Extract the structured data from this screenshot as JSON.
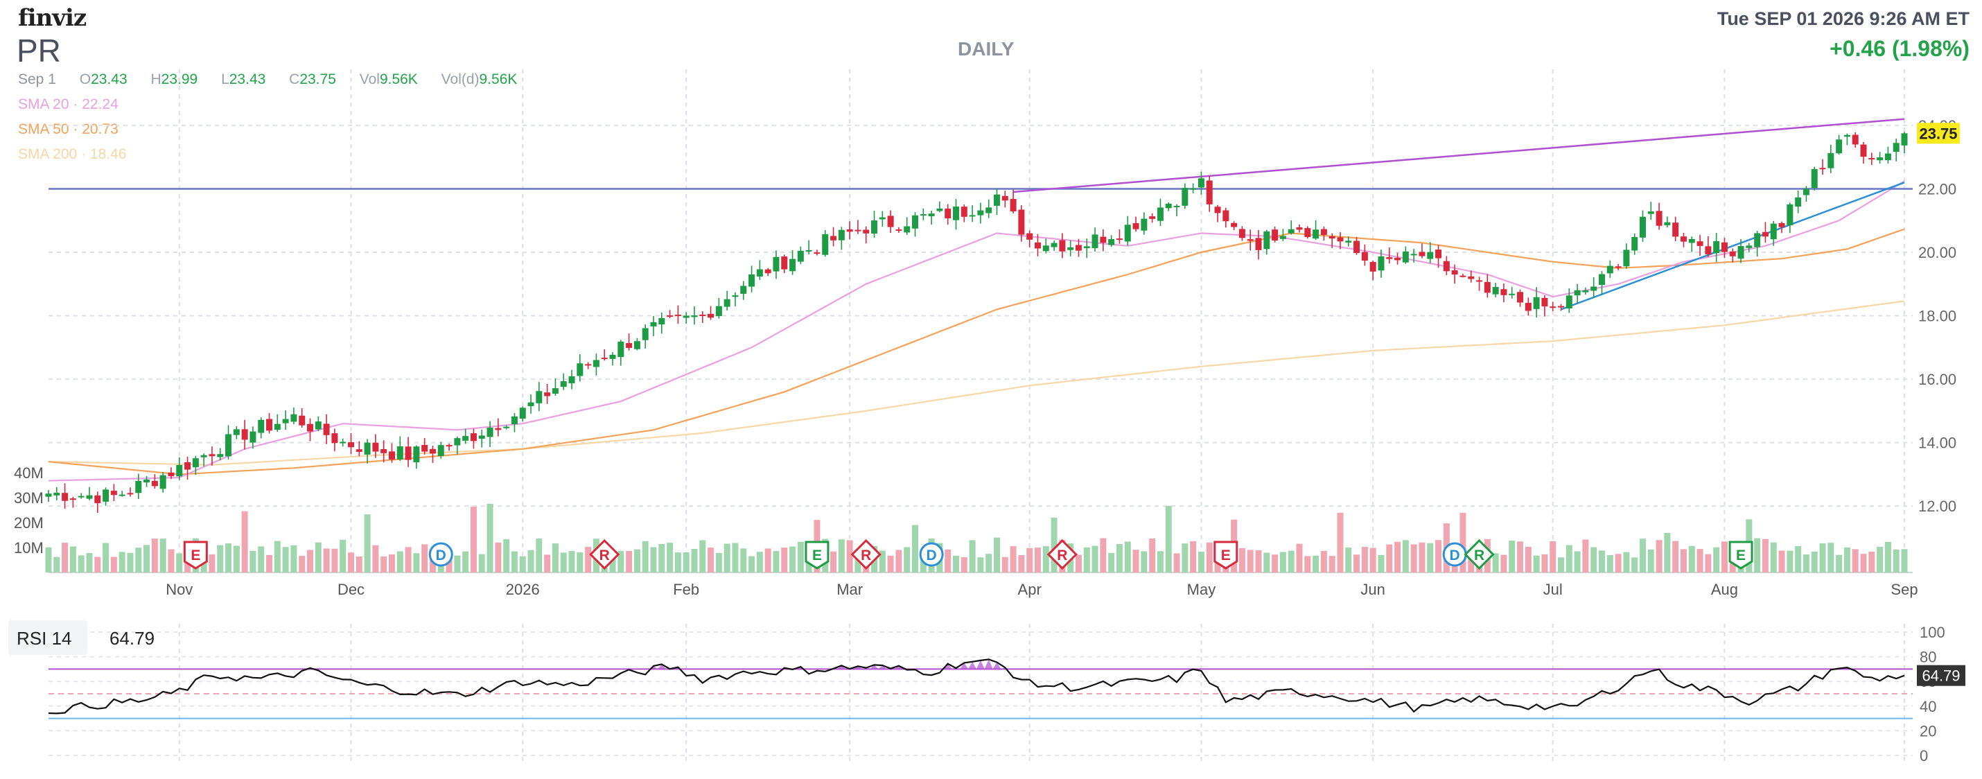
{
  "header": {
    "logo": "finviz",
    "ticker": "PR",
    "interval": "DAILY",
    "datetime": "Tue SEP 01 2026 9:26 AM ET",
    "change": "+0.46 (1.98%)"
  },
  "ohlc": {
    "date": "Sep 1",
    "open_label": "O",
    "open": "23.43",
    "high_label": "H",
    "high": "23.99",
    "low_label": "L",
    "low": "23.43",
    "close_label": "C",
    "close": "23.75",
    "vol_label": "Vol",
    "vol": "9.56K",
    "vold_label": "Vol(d)",
    "vold": "9.56K"
  },
  "smas": [
    {
      "name": "SMA 20",
      "value": "22.24",
      "color": "#e8a0e0"
    },
    {
      "name": "SMA 50",
      "value": "20.73",
      "color": "#f4a259"
    },
    {
      "name": "SMA 200",
      "value": "18.46",
      "color": "#f6d7a5"
    }
  ],
  "colors": {
    "up": "#1e9c45",
    "down": "#d8283c",
    "vol_up": "#9fd6ad",
    "vol_down": "#f0a6b0",
    "trend_upper": "#b04fd0",
    "trend_lower": "#2a8fd6",
    "horizontal": "#6a74c9",
    "last_price_bg": "#f8ea1c",
    "rsi_line": "#111111",
    "rsi_ob": "#b04fd0",
    "rsi_os": "#6bb6f0"
  },
  "icons": {
    "event_marker": "diamond/shield marker"
  },
  "chart_data": [
    {
      "type": "candlestick",
      "title": "PR",
      "y_axis_ticks": [
        "24.00",
        "22.00",
        "20.00",
        "18.00",
        "16.00",
        "14.00",
        "12.00"
      ],
      "ylim": [
        11,
        24.5
      ],
      "x_tick_labels": [
        "Nov",
        "Dec",
        "2026",
        "Feb",
        "Mar",
        "Apr",
        "May",
        "Jun",
        "Jul",
        "Aug",
        "Sep"
      ],
      "x_tick_index": [
        16,
        37,
        58,
        78,
        98,
        120,
        141,
        162,
        184,
        205,
        227
      ],
      "last_price": "23.75",
      "volume_axis_labels": [
        "40M",
        "30M",
        "20M",
        "10M"
      ],
      "volume_levels": [
        40,
        30,
        20,
        10
      ],
      "close_keypoints": [
        [
          0,
          12.4
        ],
        [
          8,
          12.3
        ],
        [
          16,
          13.2
        ],
        [
          24,
          14.3
        ],
        [
          30,
          14.8
        ],
        [
          36,
          14.0
        ],
        [
          44,
          13.6
        ],
        [
          50,
          14.0
        ],
        [
          58,
          15.0
        ],
        [
          66,
          16.5
        ],
        [
          74,
          17.6
        ],
        [
          80,
          18.0
        ],
        [
          86,
          19.2
        ],
        [
          92,
          20.0
        ],
        [
          100,
          20.8
        ],
        [
          112,
          21.3
        ],
        [
          116,
          21.8
        ],
        [
          120,
          20.4
        ],
        [
          126,
          20.2
        ],
        [
          132,
          20.8
        ],
        [
          141,
          22.2
        ],
        [
          143,
          21.0
        ],
        [
          148,
          20.3
        ],
        [
          152,
          20.9
        ],
        [
          157,
          20.5
        ],
        [
          162,
          19.6
        ],
        [
          168,
          19.9
        ],
        [
          176,
          18.7
        ],
        [
          184,
          18.2
        ],
        [
          190,
          19.1
        ],
        [
          196,
          21.2
        ],
        [
          200,
          20.5
        ],
        [
          205,
          20.0
        ],
        [
          212,
          20.9
        ],
        [
          219,
          23.6
        ],
        [
          224,
          23.0
        ],
        [
          227,
          23.75
        ]
      ],
      "sma_keypoints": {
        "sma20": [
          [
            0,
            12.8
          ],
          [
            16,
            12.9
          ],
          [
            24,
            13.8
          ],
          [
            36,
            14.6
          ],
          [
            50,
            14.4
          ],
          [
            58,
            14.6
          ],
          [
            70,
            15.3
          ],
          [
            86,
            17.0
          ],
          [
            100,
            19.0
          ],
          [
            116,
            20.6
          ],
          [
            132,
            20.2
          ],
          [
            141,
            20.6
          ],
          [
            150,
            20.5
          ],
          [
            162,
            20.0
          ],
          [
            176,
            19.3
          ],
          [
            184,
            18.6
          ],
          [
            192,
            19.0
          ],
          [
            200,
            19.7
          ],
          [
            210,
            20.2
          ],
          [
            219,
            21.0
          ],
          [
            227,
            22.24
          ]
        ],
        "sma50": [
          [
            0,
            13.4
          ],
          [
            16,
            13.0
          ],
          [
            30,
            13.2
          ],
          [
            44,
            13.5
          ],
          [
            58,
            13.8
          ],
          [
            74,
            14.4
          ],
          [
            90,
            15.6
          ],
          [
            104,
            17.0
          ],
          [
            116,
            18.2
          ],
          [
            132,
            19.3
          ],
          [
            141,
            20.0
          ],
          [
            152,
            20.6
          ],
          [
            168,
            20.3
          ],
          [
            184,
            19.7
          ],
          [
            192,
            19.5
          ],
          [
            200,
            19.6
          ],
          [
            212,
            19.8
          ],
          [
            220,
            20.1
          ],
          [
            227,
            20.73
          ]
        ],
        "sma200": [
          [
            0,
            13.4
          ],
          [
            20,
            13.3
          ],
          [
            40,
            13.6
          ],
          [
            58,
            13.8
          ],
          [
            80,
            14.3
          ],
          [
            100,
            15.0
          ],
          [
            120,
            15.8
          ],
          [
            141,
            16.4
          ],
          [
            162,
            16.9
          ],
          [
            184,
            17.2
          ],
          [
            205,
            17.7
          ],
          [
            227,
            18.46
          ]
        ]
      },
      "trend_lines": [
        {
          "name": "upper",
          "from": [
            118,
            21.9
          ],
          "to": [
            227,
            24.2
          ]
        },
        {
          "name": "lower",
          "from": [
            185,
            18.2
          ],
          "to": [
            227,
            22.2
          ]
        },
        {
          "name": "horizontal",
          "level": 22.0
        }
      ],
      "events": [
        {
          "label": "E",
          "index": 18,
          "shape": "shield",
          "color": "#d8283c"
        },
        {
          "label": "D",
          "index": 48,
          "shape": "circle",
          "color": "#2a8fd6"
        },
        {
          "label": "R",
          "index": 68,
          "shape": "diamond",
          "color": "#d8283c"
        },
        {
          "label": "E",
          "index": 94,
          "shape": "shield",
          "color": "#1e9c45"
        },
        {
          "label": "R",
          "index": 100,
          "shape": "diamond",
          "color": "#d8283c"
        },
        {
          "label": "D",
          "index": 108,
          "shape": "circle",
          "color": "#2a8fd6"
        },
        {
          "label": "R",
          "index": 124,
          "shape": "diamond",
          "color": "#d8283c"
        },
        {
          "label": "E",
          "index": 144,
          "shape": "shield",
          "color": "#d8283c"
        },
        {
          "label": "D",
          "index": 172,
          "shape": "circle",
          "color": "#2a8fd6"
        },
        {
          "label": "R",
          "index": 175,
          "shape": "diamond",
          "color": "#1e9c45"
        },
        {
          "label": "E",
          "index": 207,
          "shape": "shield",
          "color": "#1e9c45"
        }
      ]
    },
    {
      "type": "line",
      "title": "RSI 14",
      "value": "64.79",
      "y_axis_ticks": [
        "100",
        "80",
        "60",
        "40",
        "20",
        "0"
      ],
      "ylim": [
        0,
        100
      ],
      "levels": [
        70,
        30
      ],
      "rsi_keypoints": [
        [
          0,
          36
        ],
        [
          6,
          41
        ],
        [
          12,
          45
        ],
        [
          16,
          52
        ],
        [
          20,
          65
        ],
        [
          26,
          62
        ],
        [
          32,
          68
        ],
        [
          38,
          58
        ],
        [
          44,
          52
        ],
        [
          50,
          49
        ],
        [
          58,
          60
        ],
        [
          64,
          57
        ],
        [
          70,
          65
        ],
        [
          76,
          72
        ],
        [
          80,
          62
        ],
        [
          86,
          68
        ],
        [
          92,
          69
        ],
        [
          100,
          72
        ],
        [
          108,
          68
        ],
        [
          112,
          76
        ],
        [
          116,
          75
        ],
        [
          120,
          58
        ],
        [
          126,
          55
        ],
        [
          132,
          59
        ],
        [
          138,
          62
        ],
        [
          141,
          70
        ],
        [
          144,
          44
        ],
        [
          152,
          52
        ],
        [
          158,
          48
        ],
        [
          162,
          44
        ],
        [
          168,
          38
        ],
        [
          174,
          46
        ],
        [
          180,
          41
        ],
        [
          186,
          38
        ],
        [
          192,
          56
        ],
        [
          196,
          70
        ],
        [
          200,
          57
        ],
        [
          204,
          52
        ],
        [
          208,
          44
        ],
        [
          214,
          55
        ],
        [
          219,
          72
        ],
        [
          223,
          62
        ],
        [
          227,
          64.79
        ]
      ]
    }
  ]
}
